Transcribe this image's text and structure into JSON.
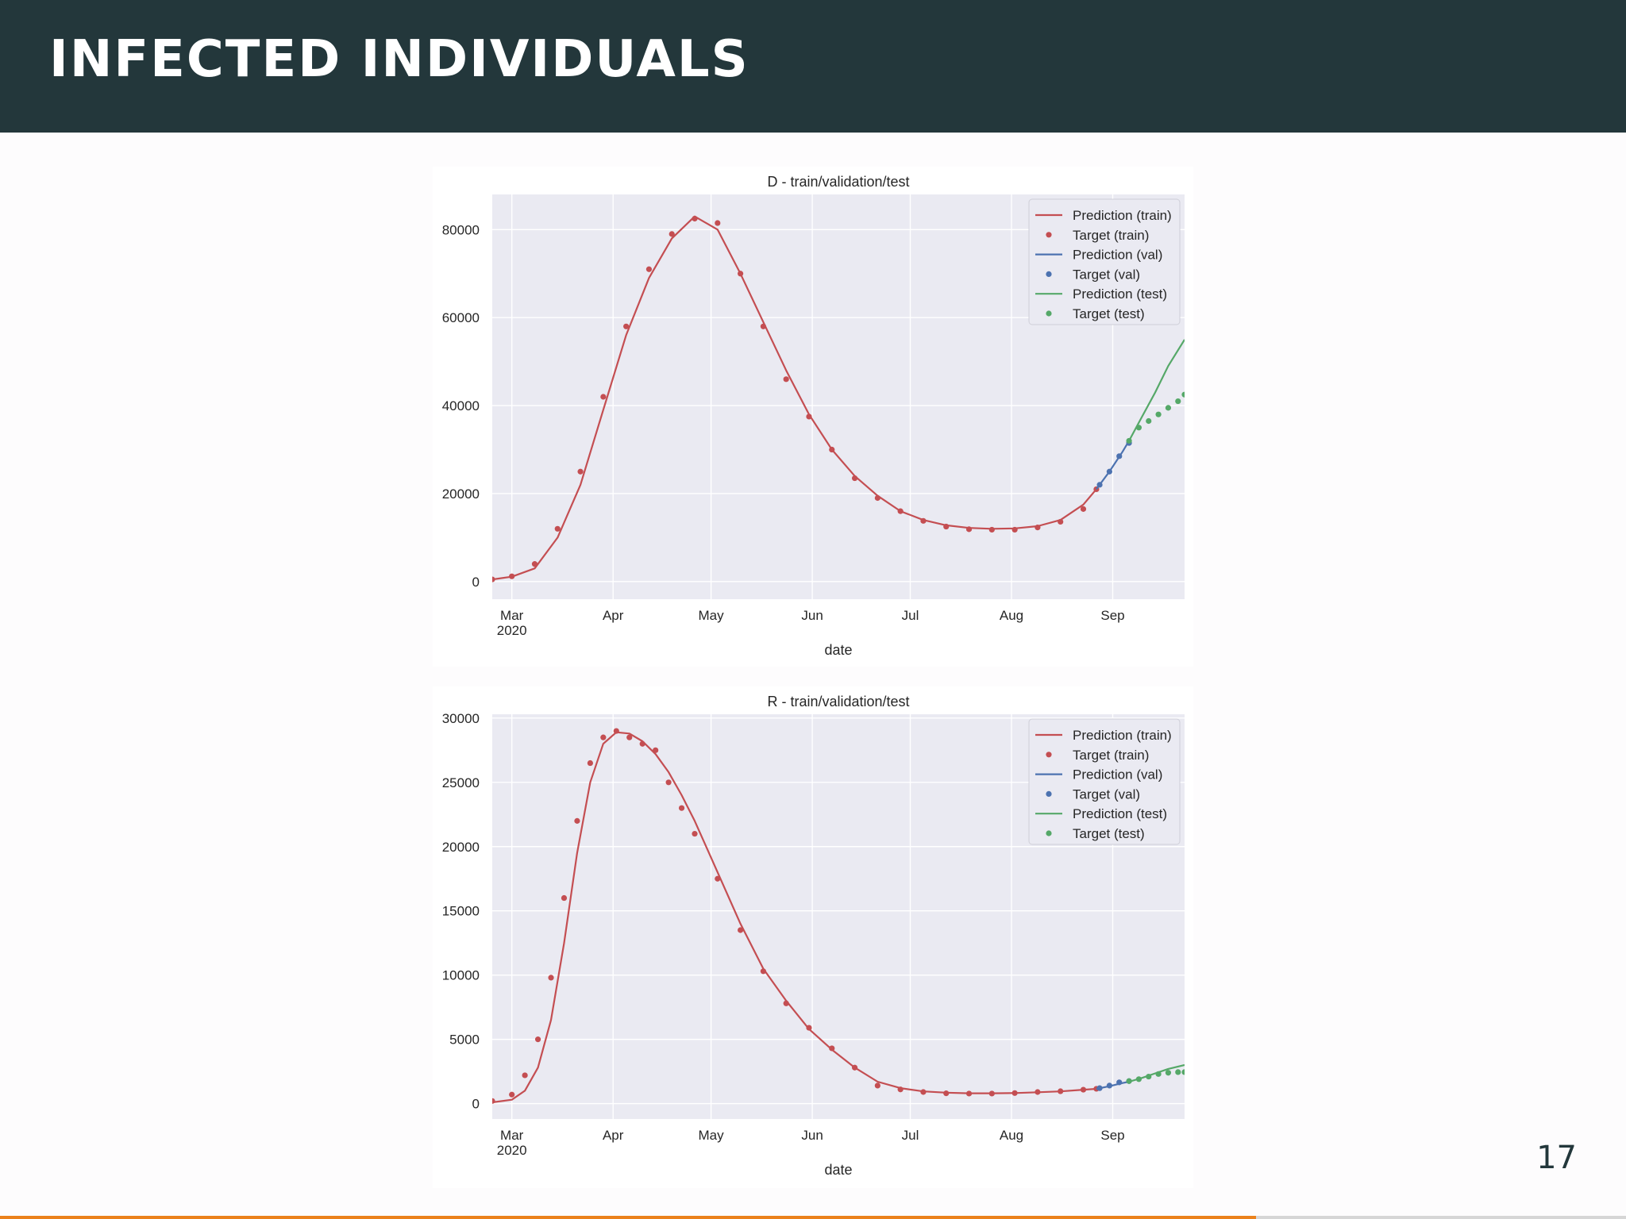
{
  "slide": {
    "title": "INFECTED INDIVIDUALS",
    "page_number": "17"
  },
  "colors": {
    "header_bg": "#23373b",
    "train": "#c44e52",
    "val": "#4c72b0",
    "test": "#55a868",
    "plot_bg": "#eaeaf2",
    "accent": "#eb811b"
  },
  "chart_data": [
    {
      "type": "line",
      "title": "D - train/validation/test",
      "xlabel": "date",
      "ylabel": "",
      "x_ticks": [
        "2020-03-01",
        "2020-04-01",
        "2020-05-01",
        "2020-06-01",
        "2020-07-01",
        "2020-08-01",
        "2020-09-01"
      ],
      "x_tick_labels": [
        [
          "Mar",
          "2020"
        ],
        [
          "Apr"
        ],
        [
          "May"
        ],
        [
          "Jun"
        ],
        [
          "Jul"
        ],
        [
          "Aug"
        ],
        [
          "Sep"
        ]
      ],
      "xlim": [
        "2020-02-24",
        "2020-09-23"
      ],
      "ylim": [
        -4000,
        88000
      ],
      "y_ticks": [
        0,
        20000,
        40000,
        60000,
        80000
      ],
      "y_tick_labels": [
        "0",
        "20000",
        "40000",
        "60000",
        "80000"
      ],
      "grid": true,
      "legend_position": "top-right",
      "legend": [
        "Prediction (train)",
        "Target (train)",
        "Prediction (val)",
        "Target (val)",
        "Prediction (test)",
        "Target (test)"
      ],
      "series": [
        {
          "name": "Prediction (train)",
          "kind": "line",
          "color": "train",
          "x": [
            "2020-02-24",
            "2020-03-01",
            "2020-03-08",
            "2020-03-15",
            "2020-03-22",
            "2020-03-29",
            "2020-04-05",
            "2020-04-12",
            "2020-04-19",
            "2020-04-26",
            "2020-05-03",
            "2020-05-10",
            "2020-05-17",
            "2020-05-24",
            "2020-05-31",
            "2020-06-07",
            "2020-06-14",
            "2020-06-21",
            "2020-06-28",
            "2020-07-05",
            "2020-07-12",
            "2020-07-19",
            "2020-07-26",
            "2020-08-02",
            "2020-08-09",
            "2020-08-16",
            "2020-08-23",
            "2020-08-27"
          ],
          "y": [
            500,
            1100,
            3000,
            10000,
            22000,
            39000,
            56000,
            69000,
            78000,
            83000,
            80000,
            70000,
            59000,
            48000,
            38000,
            30000,
            24000,
            19500,
            16000,
            14000,
            12800,
            12200,
            12000,
            12100,
            12600,
            14000,
            17500,
            21000
          ]
        },
        {
          "name": "Target (train)",
          "kind": "points",
          "color": "train",
          "x": [
            "2020-02-24",
            "2020-03-01",
            "2020-03-08",
            "2020-03-15",
            "2020-03-22",
            "2020-03-29",
            "2020-04-05",
            "2020-04-12",
            "2020-04-19",
            "2020-04-26",
            "2020-05-03",
            "2020-05-10",
            "2020-05-17",
            "2020-05-24",
            "2020-05-31",
            "2020-06-07",
            "2020-06-14",
            "2020-06-21",
            "2020-06-28",
            "2020-07-05",
            "2020-07-12",
            "2020-07-19",
            "2020-07-26",
            "2020-08-02",
            "2020-08-09",
            "2020-08-16",
            "2020-08-23",
            "2020-08-27"
          ],
          "y": [
            500,
            1200,
            4000,
            12000,
            25000,
            42000,
            58000,
            71000,
            79000,
            82500,
            81500,
            70000,
            58000,
            46000,
            37500,
            30000,
            23500,
            19000,
            16000,
            13800,
            12500,
            11900,
            11800,
            11800,
            12300,
            13600,
            16500,
            21000
          ]
        },
        {
          "name": "Prediction (val)",
          "kind": "line",
          "color": "val",
          "x": [
            "2020-08-27",
            "2020-08-31",
            "2020-09-04",
            "2020-09-06"
          ],
          "y": [
            21000,
            25000,
            29500,
            32000
          ]
        },
        {
          "name": "Target (val)",
          "kind": "points",
          "color": "val",
          "x": [
            "2020-08-28",
            "2020-08-31",
            "2020-09-03",
            "2020-09-06"
          ],
          "y": [
            22000,
            25000,
            28500,
            31500
          ]
        },
        {
          "name": "Prediction (test)",
          "kind": "line",
          "color": "test",
          "x": [
            "2020-09-06",
            "2020-09-10",
            "2020-09-14",
            "2020-09-18",
            "2020-09-23"
          ],
          "y": [
            32000,
            37500,
            43000,
            49000,
            55000
          ]
        },
        {
          "name": "Target (test)",
          "kind": "points",
          "color": "test",
          "x": [
            "2020-09-06",
            "2020-09-09",
            "2020-09-12",
            "2020-09-15",
            "2020-09-18",
            "2020-09-21",
            "2020-09-23"
          ],
          "y": [
            32000,
            35000,
            36500,
            38000,
            39500,
            41000,
            42500
          ]
        }
      ]
    },
    {
      "type": "line",
      "title": "R - train/validation/test",
      "xlabel": "date",
      "ylabel": "",
      "x_ticks": [
        "2020-03-01",
        "2020-04-01",
        "2020-05-01",
        "2020-06-01",
        "2020-07-01",
        "2020-08-01",
        "2020-09-01"
      ],
      "x_tick_labels": [
        [
          "Mar",
          "2020"
        ],
        [
          "Apr"
        ],
        [
          "May"
        ],
        [
          "Jun"
        ],
        [
          "Jul"
        ],
        [
          "Aug"
        ],
        [
          "Sep"
        ]
      ],
      "xlim": [
        "2020-02-24",
        "2020-09-23"
      ],
      "ylim": [
        -1200,
        30300
      ],
      "y_ticks": [
        0,
        5000,
        10000,
        15000,
        20000,
        25000,
        30000
      ],
      "y_tick_labels": [
        "0",
        "5000",
        "10000",
        "15000",
        "20000",
        "25000",
        "30000"
      ],
      "grid": true,
      "legend_position": "top-right",
      "legend": [
        "Prediction (train)",
        "Target (train)",
        "Prediction (val)",
        "Target (val)",
        "Prediction (test)",
        "Target (test)"
      ],
      "series": [
        {
          "name": "Prediction (train)",
          "kind": "line",
          "color": "train",
          "x": [
            "2020-02-24",
            "2020-03-01",
            "2020-03-05",
            "2020-03-09",
            "2020-03-13",
            "2020-03-17",
            "2020-03-21",
            "2020-03-25",
            "2020-03-29",
            "2020-04-02",
            "2020-04-06",
            "2020-04-10",
            "2020-04-14",
            "2020-04-18",
            "2020-04-22",
            "2020-04-26",
            "2020-05-03",
            "2020-05-10",
            "2020-05-17",
            "2020-05-24",
            "2020-05-31",
            "2020-06-07",
            "2020-06-14",
            "2020-06-21",
            "2020-06-28",
            "2020-07-05",
            "2020-07-12",
            "2020-07-19",
            "2020-07-26",
            "2020-08-02",
            "2020-08-09",
            "2020-08-16",
            "2020-08-23",
            "2020-08-27"
          ],
          "y": [
            100,
            300,
            1000,
            2800,
            6500,
            12500,
            19500,
            25000,
            28000,
            28900,
            28800,
            28200,
            27200,
            25800,
            24000,
            22000,
            18000,
            14000,
            10500,
            8000,
            5800,
            4200,
            2800,
            1700,
            1200,
            950,
            850,
            800,
            800,
            820,
            880,
            950,
            1080,
            1150
          ]
        },
        {
          "name": "Target (train)",
          "kind": "points",
          "color": "train",
          "x": [
            "2020-02-24",
            "2020-03-01",
            "2020-03-05",
            "2020-03-09",
            "2020-03-13",
            "2020-03-17",
            "2020-03-21",
            "2020-03-25",
            "2020-03-29",
            "2020-04-02",
            "2020-04-06",
            "2020-04-10",
            "2020-04-14",
            "2020-04-18",
            "2020-04-22",
            "2020-04-26",
            "2020-05-03",
            "2020-05-10",
            "2020-05-17",
            "2020-05-24",
            "2020-05-31",
            "2020-06-07",
            "2020-06-14",
            "2020-06-21",
            "2020-06-28",
            "2020-07-05",
            "2020-07-12",
            "2020-07-19",
            "2020-07-26",
            "2020-08-02",
            "2020-08-09",
            "2020-08-16",
            "2020-08-23",
            "2020-08-27"
          ],
          "y": [
            200,
            700,
            2200,
            5000,
            9800,
            16000,
            22000,
            26500,
            28500,
            29000,
            28500,
            28000,
            27500,
            25000,
            23000,
            21000,
            17500,
            13500,
            10300,
            7800,
            5900,
            4300,
            2800,
            1400,
            1100,
            900,
            800,
            780,
            780,
            820,
            900,
            960,
            1080,
            1150
          ]
        },
        {
          "name": "Prediction (val)",
          "kind": "line",
          "color": "val",
          "x": [
            "2020-08-27",
            "2020-08-31",
            "2020-09-04",
            "2020-09-06"
          ],
          "y": [
            1150,
            1350,
            1600,
            1700
          ]
        },
        {
          "name": "Target (val)",
          "kind": "points",
          "color": "val",
          "x": [
            "2020-08-28",
            "2020-08-31",
            "2020-09-03",
            "2020-09-06"
          ],
          "y": [
            1200,
            1400,
            1650,
            1750
          ]
        },
        {
          "name": "Prediction (test)",
          "kind": "line",
          "color": "test",
          "x": [
            "2020-09-06",
            "2020-09-10",
            "2020-09-14",
            "2020-09-18",
            "2020-09-23"
          ],
          "y": [
            1700,
            2000,
            2350,
            2700,
            3000
          ]
        },
        {
          "name": "Target (test)",
          "kind": "points",
          "color": "test",
          "x": [
            "2020-09-06",
            "2020-09-09",
            "2020-09-12",
            "2020-09-15",
            "2020-09-18",
            "2020-09-21",
            "2020-09-23"
          ],
          "y": [
            1750,
            1900,
            2100,
            2300,
            2400,
            2450,
            2450
          ]
        }
      ]
    }
  ]
}
